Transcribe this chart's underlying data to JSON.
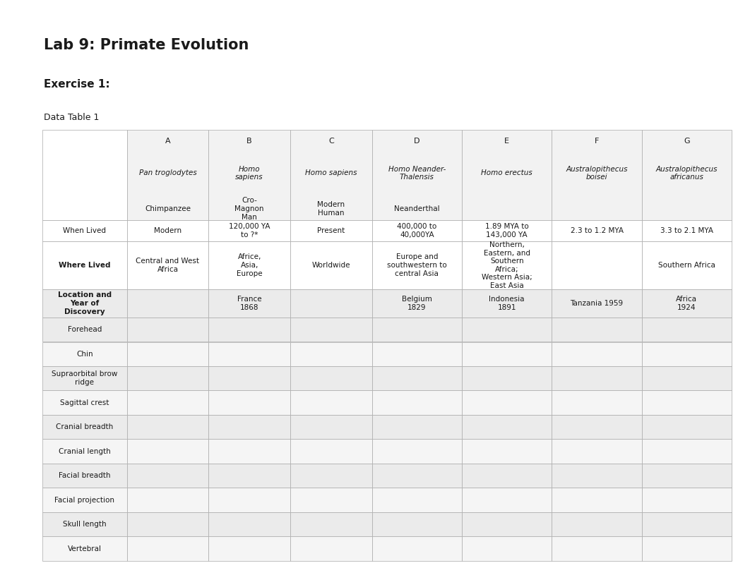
{
  "title": "Lab 9: Primate Evolution",
  "subtitle": "Exercise 1:",
  "table_label": "Data Table 1",
  "bg_color": "#ffffff",
  "title_fontsize": 15,
  "subtitle_fontsize": 11,
  "table_label_fontsize": 9,
  "col_headers": [
    {
      "letter": "A",
      "species": "Pan troglodytes",
      "common": "Chimpanzee"
    },
    {
      "letter": "B",
      "species": "Homo\nsapiens",
      "common": "Cro-\nMagnon\nMan"
    },
    {
      "letter": "C",
      "species": "Homo sapiens",
      "common": "Modern\nHuman"
    },
    {
      "letter": "D",
      "species": "Homo Neander-\nThalensis",
      "common": "Neanderthal"
    },
    {
      "letter": "E",
      "species": "Homo erectus",
      "common": ""
    },
    {
      "letter": "F",
      "species": "Australopithecus\nboisei",
      "common": ""
    },
    {
      "letter": "G",
      "species": "Australopithecus\nafricanus",
      "common": ""
    }
  ],
  "row_labels": [
    "When Lived",
    "Where Lived",
    "Location and\nYear of\nDiscovery",
    "Forehead",
    "Chin",
    "Supraorbital brow\nridge",
    "Sagittal crest",
    "Cranial breadth",
    "Cranial length",
    "Facial breadth",
    "Facial projection",
    "Skull length",
    "Vertebral"
  ],
  "row_bold": [
    false,
    true,
    true,
    false,
    false,
    false,
    false,
    false,
    false,
    false,
    false,
    false,
    false
  ],
  "cell_data": {
    "0": {
      "A": "Modern",
      "B": "120,000 YA\nto ?*",
      "C": "Present",
      "D": "400,000 to\n40,000YA",
      "E": "1.89 MYA to\n143,000 YA",
      "F": "2.3 to 1.2 MYA",
      "G": "3.3 to 2.1 MYA"
    },
    "1": {
      "A": "Central and West\nAfrica",
      "B": "Africe,\nAsia,\nEurope",
      "C": "Worldwide",
      "D": "Europe and\nsouthwestern to\ncentral Asia",
      "E": "Northern,\nEastern, and\nSouthern\nAfrica;\nWestern Asia;\nEast Asia",
      "F": "",
      "G": "Southern Africa"
    },
    "2": {
      "A": "",
      "B": "France\n1868",
      "C": "",
      "D": "Belgium\n1829",
      "E": "Indonesia\n1891",
      "F": "Tanzania 1959",
      "G": "Africa\n1924"
    },
    "3": {
      "A": "",
      "B": "",
      "C": "",
      "D": "",
      "E": "",
      "F": "",
      "G": ""
    },
    "4": {
      "A": "",
      "B": "",
      "C": "",
      "D": "",
      "E": "",
      "F": "",
      "G": ""
    },
    "5": {
      "A": "",
      "B": "",
      "C": "",
      "D": "",
      "E": "",
      "F": "",
      "G": ""
    },
    "6": {
      "A": "",
      "B": "",
      "C": "",
      "D": "",
      "E": "",
      "F": "",
      "G": ""
    },
    "7": {
      "A": "",
      "B": "",
      "C": "",
      "D": "",
      "E": "",
      "F": "",
      "G": ""
    },
    "8": {
      "A": "",
      "B": "",
      "C": "",
      "D": "",
      "E": "",
      "F": "",
      "G": ""
    },
    "9": {
      "A": "",
      "B": "",
      "C": "",
      "D": "",
      "E": "",
      "F": "",
      "G": ""
    },
    "10": {
      "A": "",
      "B": "",
      "C": "",
      "D": "",
      "E": "",
      "F": "",
      "G": ""
    },
    "11": {
      "A": "",
      "B": "",
      "C": "",
      "D": "",
      "E": "",
      "F": "",
      "G": ""
    },
    "12": {
      "A": "",
      "B": "",
      "C": "",
      "D": "",
      "E": "",
      "F": "",
      "G": ""
    }
  },
  "table_border_color": "#aaaaaa",
  "row_shading": [
    "#ffffff",
    "#ffffff",
    "#ebebeb",
    "#ebebeb",
    "#f5f5f5",
    "#ebebeb",
    "#f5f5f5",
    "#ebebeb",
    "#f5f5f5",
    "#ebebeb",
    "#f5f5f5",
    "#ebebeb",
    "#f5f5f5"
  ]
}
